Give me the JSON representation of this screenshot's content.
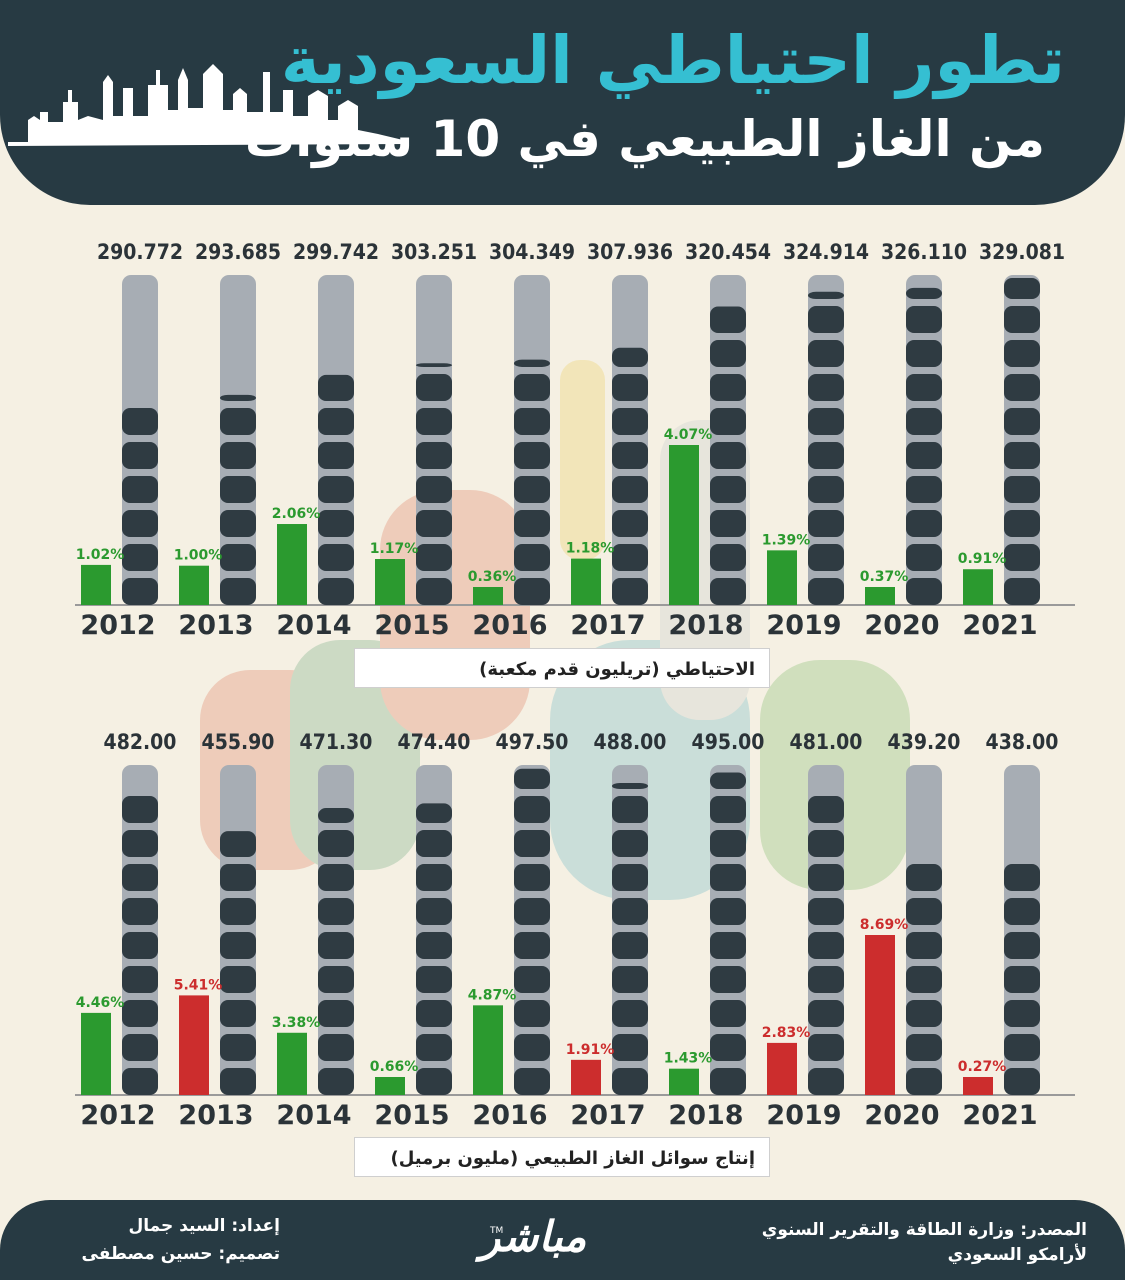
{
  "header": {
    "title": "تطور احتياطي السعودية",
    "subtitle": "من الغاز الطبيعي في 10 سنوات"
  },
  "colors": {
    "dark": "#273a43",
    "accent": "#35bfd2",
    "green": "#2b9a2f",
    "red": "#cc2d2d",
    "track": "#a7adb4",
    "segment": "#2f3b42"
  },
  "chart_data": [
    {
      "type": "bar",
      "name_label": "الاحتياطي (تريليون قدم مكعبة)",
      "categories": [
        "2012",
        "2013",
        "2014",
        "2015",
        "2016",
        "2017",
        "2018",
        "2019",
        "2020",
        "2021"
      ],
      "values": [
        290.772,
        293.685,
        299.742,
        303.251,
        304.349,
        307.936,
        320.454,
        324.914,
        326.11,
        329.081
      ],
      "value_labels": [
        "290.772",
        "293.685",
        "299.742",
        "303.251",
        "304.349",
        "307.936",
        "320.454",
        "324.914",
        "326.110",
        "329.081"
      ],
      "ylim": [
        230,
        330
      ],
      "growth_pct": [
        1.02,
        1.0,
        2.06,
        1.17,
        0.36,
        1.18,
        4.07,
        1.39,
        0.37,
        0.91
      ],
      "growth_labels": [
        "1.02%",
        "1.00%",
        "2.06%",
        "1.17%",
        "0.36%",
        "1.18%",
        "4.07%",
        "1.39%",
        "0.37%",
        "0.91%"
      ],
      "growth_sign": [
        "up",
        "up",
        "up",
        "up",
        "up",
        "up",
        "up",
        "up",
        "up",
        "up"
      ]
    },
    {
      "type": "bar",
      "name_label": "إنتاج سوائل الغاز الطبيعي (مليون برميل)",
      "categories": [
        "2012",
        "2013",
        "2014",
        "2015",
        "2016",
        "2017",
        "2018",
        "2019",
        "2020",
        "2021"
      ],
      "values": [
        482.0,
        455.9,
        471.3,
        474.4,
        497.5,
        488.0,
        495.0,
        481.0,
        439.2,
        438.0
      ],
      "value_labels": [
        "482.00",
        "455.90",
        "471.30",
        "474.40",
        "497.50",
        "488.00",
        "495.00",
        "481.00",
        "439.20",
        "438.00"
      ],
      "ylim": [
        280,
        500
      ],
      "growth_pct": [
        4.46,
        5.41,
        3.38,
        0.66,
        4.87,
        1.91,
        1.43,
        2.83,
        8.69,
        0.27
      ],
      "growth_labels": [
        "4.46%",
        "5.41%",
        "3.38%",
        "0.66%",
        "4.87%",
        "1.91%",
        "1.43%",
        "2.83%",
        "8.69%",
        "0.27%"
      ],
      "growth_sign": [
        "up",
        "down",
        "up",
        "up",
        "up",
        "down",
        "up",
        "down",
        "down",
        "down"
      ]
    }
  ],
  "footer": {
    "source_line1": "المصدر: وزارة الطاقة والتقرير السنوي",
    "source_line2": "لأرامكو السعودي",
    "prepared_by": "إعداد: السيد جمال",
    "designed_by": "تصميم: حسين مصطفى",
    "logo": "مباشر",
    "trademark": "TM"
  }
}
